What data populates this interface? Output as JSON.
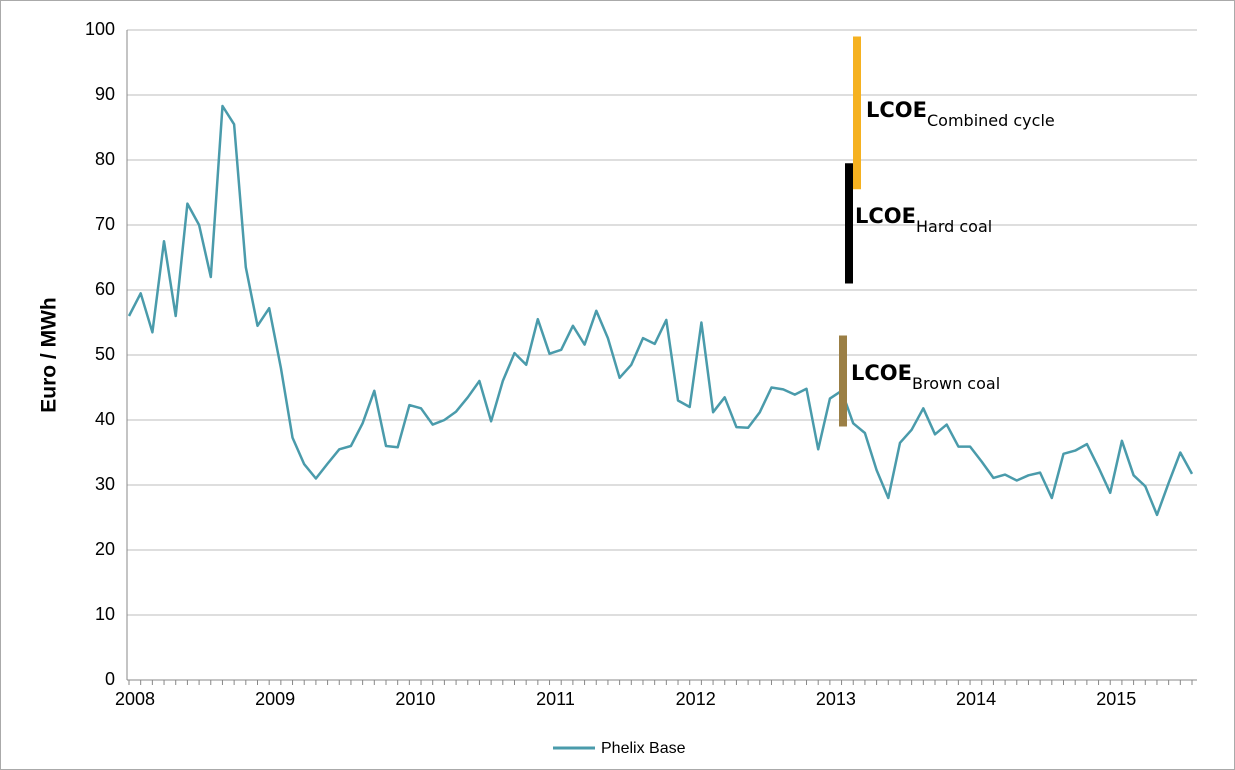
{
  "chart_data": {
    "type": "line",
    "ylabel": "Euro / MWh",
    "categories": [
      "2008",
      null,
      null,
      null,
      null,
      null,
      null,
      null,
      null,
      null,
      null,
      null,
      "2009",
      null,
      null,
      null,
      null,
      null,
      null,
      null,
      null,
      null,
      null,
      null,
      "2010",
      null,
      null,
      null,
      null,
      null,
      null,
      null,
      null,
      null,
      null,
      null,
      "2011",
      null,
      null,
      null,
      null,
      null,
      null,
      null,
      null,
      null,
      null,
      null,
      "2012",
      null,
      null,
      null,
      null,
      null,
      null,
      null,
      null,
      null,
      null,
      null,
      "2013",
      null,
      null,
      null,
      null,
      null,
      null,
      null,
      null,
      null,
      null,
      null,
      "2014",
      null,
      null,
      null,
      null,
      null,
      null,
      null,
      null,
      null,
      null,
      null,
      "2015",
      null,
      null,
      null,
      null,
      null,
      null,
      null
    ],
    "series": [
      {
        "name": "Phelix Base",
        "color": "#4a9bab",
        "values": [
          56,
          59.5,
          53.5,
          67.5,
          56,
          73.3,
          70,
          62,
          88.3,
          85.5,
          63.5,
          54.5,
          57.2,
          48,
          37.3,
          33.2,
          31,
          33.3,
          35.5,
          36,
          39.5,
          44.5,
          36,
          35.8,
          42.3,
          41.8,
          39.3,
          40,
          41.3,
          43.5,
          46,
          39.8,
          46,
          50.3,
          48.5,
          55.5,
          50.2,
          50.8,
          54.5,
          51.6,
          56.8,
          52.6,
          46.5,
          48.5,
          52.6,
          51.7,
          55.4,
          43,
          42,
          55,
          41.2,
          43.5,
          38.9,
          38.8,
          41.2,
          45,
          44.7,
          43.9,
          44.8,
          35.5,
          43.3,
          44.5,
          39.5,
          38,
          32.3,
          28,
          36.5,
          38.5,
          41.8,
          37.8,
          39.3,
          35.9,
          35.9,
          33.6,
          31.1,
          31.6,
          30.7,
          31.5,
          31.9,
          28,
          34.8,
          35.3,
          36.3,
          32.7,
          28.8,
          36.8,
          31.5,
          29.8,
          25.4,
          30.3,
          35,
          31.7
        ]
      }
    ],
    "ranges": [
      {
        "label": "LCOE",
        "subscript": "Combined cycle",
        "low": 75.5,
        "high": 99,
        "color": "#f5b120"
      },
      {
        "label": "LCOE",
        "subscript": "Hard coal",
        "low": 61,
        "high": 79.5,
        "color": "#000000"
      },
      {
        "label": "LCOE",
        "subscript": "Brown coal",
        "low": 39,
        "high": 53,
        "color": "#9b7f45"
      }
    ],
    "ylim": [
      0,
      100
    ],
    "yticks": [
      0,
      10,
      20,
      30,
      40,
      50,
      60,
      70,
      80,
      90,
      100
    ],
    "grid": true,
    "legend": "bottom"
  }
}
